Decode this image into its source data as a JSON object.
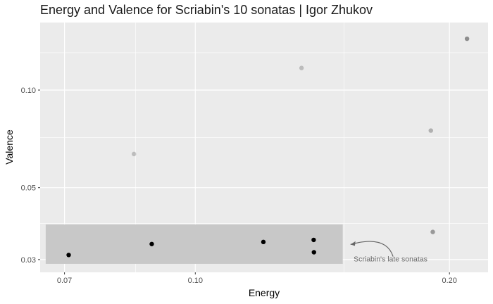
{
  "chart_data": {
    "type": "scatter",
    "title": "Energy and Valence for Scriabin's 10 sonatas | Igor Zhukov",
    "xlabel": "Energy",
    "ylabel": "Valence",
    "x_scale": "log",
    "y_scale": "log",
    "xlim": [
      0.0655,
      0.2222
    ],
    "ylim": [
      0.0274,
      0.1616
    ],
    "grid": true,
    "x_ticks": [
      {
        "value": 0.07,
        "label": "0.07"
      },
      {
        "value": 0.1,
        "label": "0.10"
      },
      {
        "value": 0.2,
        "label": "0.20"
      }
    ],
    "y_ticks": [
      {
        "value": 0.03,
        "label": "0.03"
      },
      {
        "value": 0.05,
        "label": "0.05"
      },
      {
        "value": 0.1,
        "label": "0.10"
      }
    ],
    "x_minor_ticks": [
      0.085,
      0.15
    ],
    "y_minor_ticks": [
      0.0388,
      0.0713,
      0.1304
    ],
    "points": [
      {
        "x": 0.0708,
        "y": 0.031,
        "shade": "#000000",
        "opacity": 1.0
      },
      {
        "x": 0.0888,
        "y": 0.0335,
        "shade": "#000000",
        "opacity": 1.0
      },
      {
        "x": 0.1204,
        "y": 0.034,
        "shade": "#000000",
        "opacity": 1.0
      },
      {
        "x": 0.1381,
        "y": 0.0345,
        "shade": "#000000",
        "opacity": 1.0
      },
      {
        "x": 0.1382,
        "y": 0.0316,
        "shade": "#000000",
        "opacity": 1.0
      },
      {
        "x": 0.0846,
        "y": 0.0635,
        "shade": "#000000",
        "opacity": 0.2
      },
      {
        "x": 0.1336,
        "y": 0.117,
        "shade": "#000000",
        "opacity": 0.2
      },
      {
        "x": 0.1901,
        "y": 0.075,
        "shade": "#000000",
        "opacity": 0.25
      },
      {
        "x": 0.1911,
        "y": 0.0365,
        "shade": "#000000",
        "opacity": 0.35
      },
      {
        "x": 0.2098,
        "y": 0.144,
        "shade": "#000000",
        "opacity": 0.4
      }
    ],
    "highlight_region": {
      "x": [
        0.0665,
        0.1495
      ],
      "y": [
        0.0291,
        0.0385
      ]
    },
    "annotation": {
      "text": "Scriabin's late sonatas",
      "x": 0.154,
      "y": 0.0302,
      "arrow_to": {
        "x": 0.1527,
        "y": 0.0334
      }
    },
    "colors": {
      "panel": "#ebebeb",
      "grid_major": "#ffffff",
      "highlight": "#c8c8c8",
      "annotation": "#666666"
    }
  }
}
